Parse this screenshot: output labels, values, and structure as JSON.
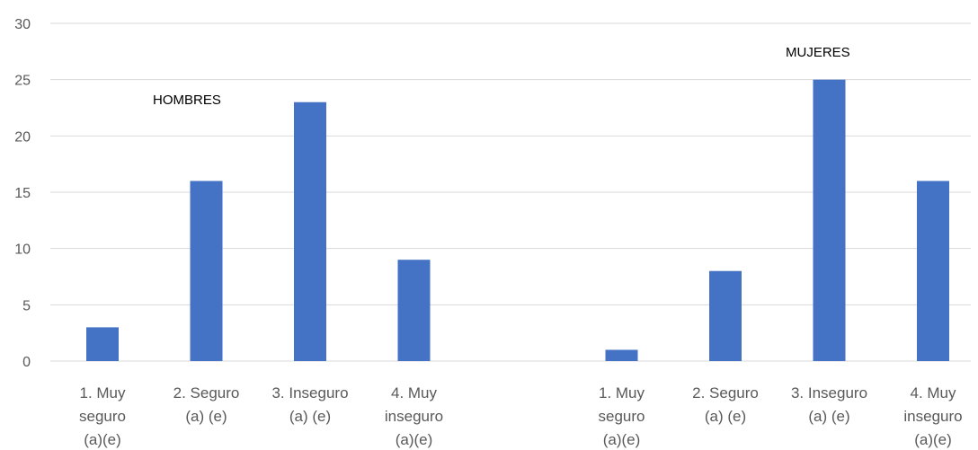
{
  "chart_data": {
    "type": "bar",
    "categories": [
      [
        "1. Muy",
        "seguro",
        "(a)(e)"
      ],
      [
        "2. Seguro",
        "(a) (e)"
      ],
      [
        "3. Inseguro",
        "(a) (e)"
      ],
      [
        "4. Muy",
        "inseguro",
        "(a)(e)"
      ],
      [],
      [
        "1. Muy",
        "seguro",
        "(a)(e)"
      ],
      [
        "2. Seguro",
        "(a) (e)"
      ],
      [
        "3. Inseguro",
        "(a) (e)"
      ],
      [
        "4. Muy",
        "inseguro",
        "(a)(e)"
      ]
    ],
    "values": [
      3,
      16,
      23,
      9,
      null,
      1,
      8,
      25,
      16
    ],
    "ylim": [
      0,
      30
    ],
    "yticks": [
      0,
      5,
      10,
      15,
      20,
      25,
      30
    ],
    "grid": true,
    "annotations": [
      {
        "text": "HOMBRES"
      },
      {
        "text": "MUJERES"
      }
    ],
    "colors": {
      "bar": "#4472C4",
      "grid": "#D9D9D9",
      "text": "#595959"
    }
  }
}
